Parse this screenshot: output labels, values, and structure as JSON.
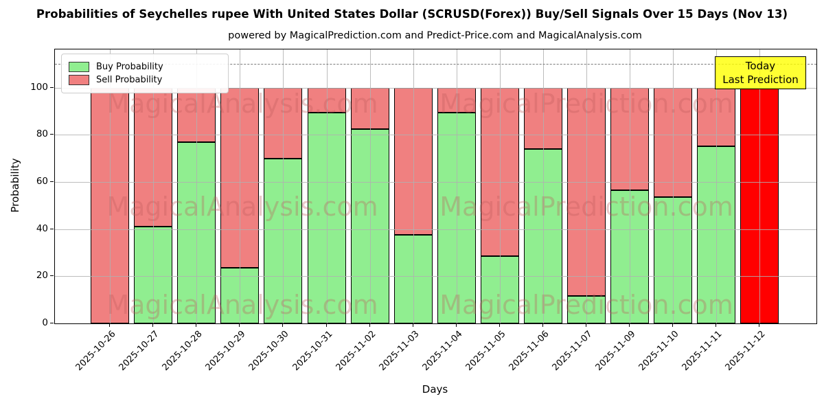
{
  "header": {
    "title": "Probabilities of Seychelles rupee With United States Dollar (SCRUSD(Forex)) Buy/Sell Signals Over 15 Days (Nov 13)",
    "subtitle": "powered by MagicalPrediction.com and Predict-Price.com and MagicalAnalysis.com"
  },
  "annotation": {
    "line1": "Today",
    "line2": "Last Prediction"
  },
  "watermarks": {
    "left": "MagicalAnalysis.com",
    "right": "MagicalPrediction.com"
  },
  "colors": {
    "buy": "#90ee90",
    "sell": "#f08080",
    "today_bar": "#ff0000",
    "annotation_bg": "#ffff00",
    "grid": "#b0b0b0",
    "bar_edge": "#000000"
  },
  "chart_data": {
    "type": "bar",
    "stacked": true,
    "title": "Probabilities of Seychelles rupee With United States Dollar (SCRUSD(Forex)) Buy/Sell Signals Over 15 Days (Nov 13)",
    "subtitle": "powered by MagicalPrediction.com and Predict-Price.com and MagicalAnalysis.com",
    "xlabel": "Days",
    "ylabel": "Probability",
    "categories": [
      "2025-10-26",
      "2025-10-27",
      "2025-10-28",
      "2025-10-29",
      "2025-10-30",
      "2025-10-31",
      "2025-11-02",
      "2025-11-03",
      "2025-11-04",
      "2025-11-05",
      "2025-11-06",
      "2025-11-07",
      "2025-11-09",
      "2025-11-10",
      "2025-11-11",
      "2025-11-12"
    ],
    "series": [
      {
        "name": "Buy Probability",
        "color": "#90ee90",
        "values": [
          0,
          41,
          77,
          23.5,
          70,
          89.5,
          82.5,
          37.5,
          89.5,
          28.5,
          74,
          11.5,
          56.5,
          53.5,
          75,
          0
        ]
      },
      {
        "name": "Sell Probability",
        "color": "#f08080",
        "values": [
          100,
          59,
          23,
          76.5,
          30,
          10.5,
          17.5,
          62.5,
          10.5,
          71.5,
          26,
          88.5,
          43.5,
          46.5,
          25,
          100
        ]
      }
    ],
    "today_bar": {
      "category": "2025-11-12",
      "index": 15,
      "color": "#ff0000",
      "total": 100
    },
    "yticks": [
      0,
      20,
      40,
      60,
      80,
      100
    ],
    "ylim": [
      0,
      116
    ],
    "reference_line_y": 110,
    "grid": true,
    "legend_position": "upper left"
  }
}
